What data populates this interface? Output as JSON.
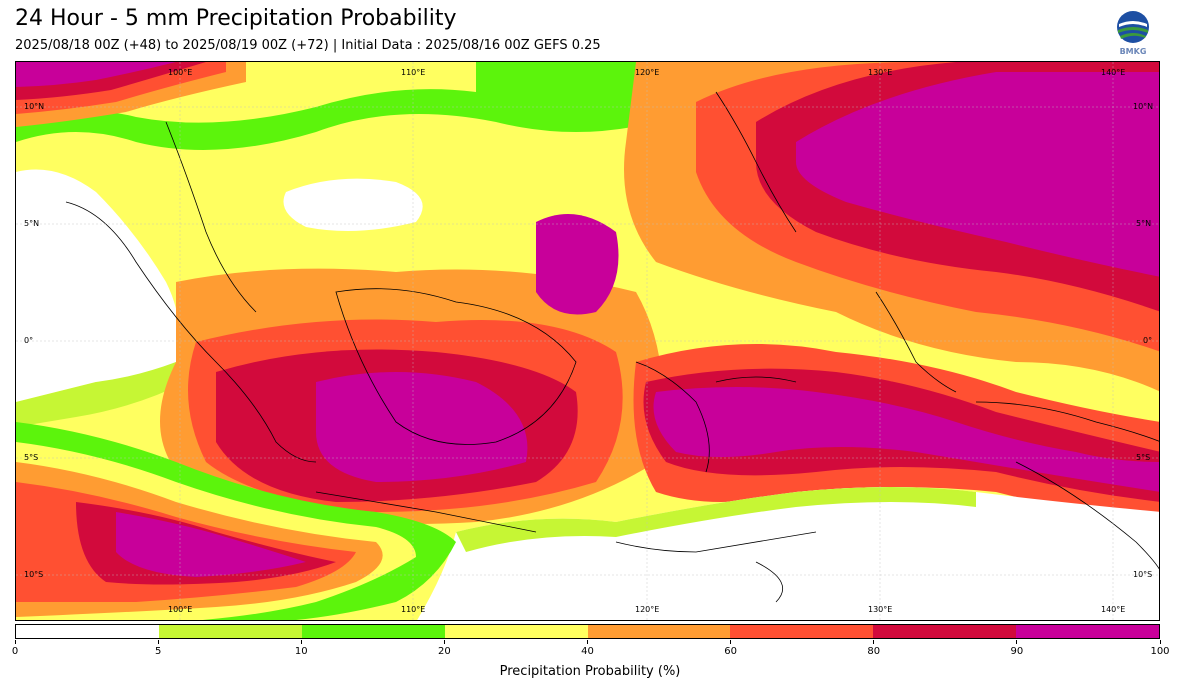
{
  "header": {
    "title": "24 Hour - 5 mm Precipitation Probability",
    "subtitle": "2025/08/18 00Z (+48) to 2025/08/19 00Z (+72) | Initial Data : 2025/08/16 00Z GEFS 0.25",
    "logo_text": "BMKG"
  },
  "map": {
    "lon_top": [
      "100°E",
      "110°E",
      "120°E",
      "130°E",
      "140°E"
    ],
    "lon_bottom": [
      "100°E",
      "110°E",
      "120°E",
      "130°E",
      "140°E"
    ],
    "lat_left": [
      "10°N",
      "5°N",
      "0°",
      "5°S",
      "10°S"
    ],
    "lat_right": [
      "10°N",
      "5°N",
      "0°",
      "5°S",
      "10°S"
    ],
    "palette": {
      "c0": "#ffffff",
      "c5": "#c6f634",
      "c10": "#5cf40c",
      "c20": "#ffff60",
      "c40": "#ff9c32",
      "c60": "#ff5032",
      "c80": "#d20a3c",
      "c90": "#c8009a"
    }
  },
  "colorbar": {
    "ticks": [
      "0",
      "5",
      "10",
      "20",
      "40",
      "60",
      "80",
      "90",
      "100"
    ],
    "colors": [
      "#ffffff",
      "#c6f634",
      "#5cf40c",
      "#ffff60",
      "#ff9c32",
      "#ff5032",
      "#d20a3c",
      "#c8009a"
    ],
    "label": "Precipitation Probability (%)"
  }
}
